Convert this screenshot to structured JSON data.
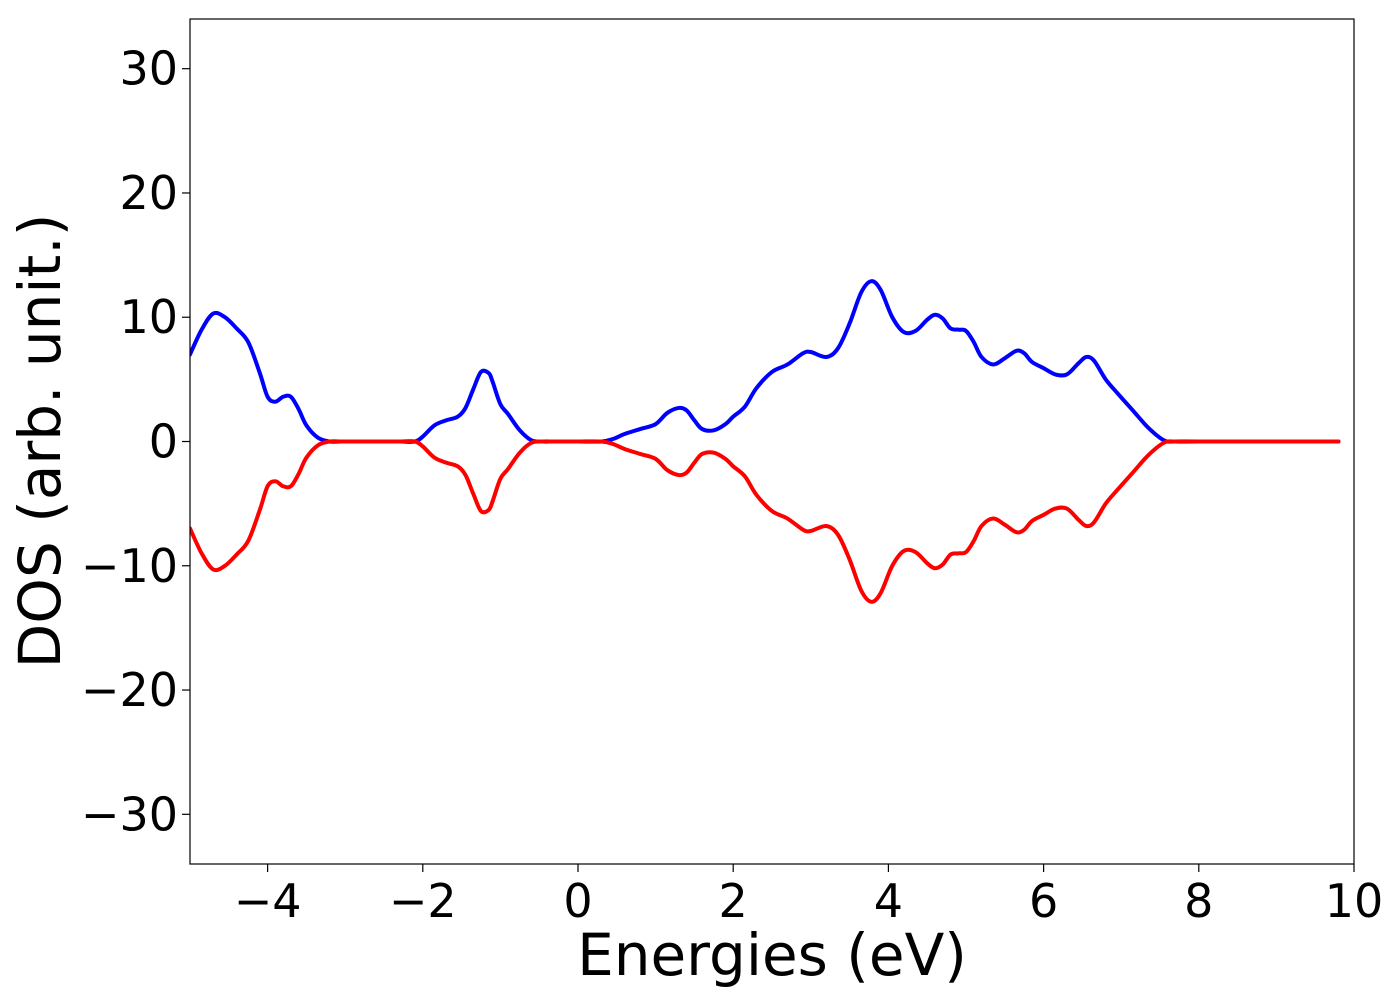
{
  "chart_data": {
    "type": "line",
    "xlabel": "Energies (eV)",
    "ylabel": "DOS (arb. unit.)",
    "xlim": [
      -5,
      10
    ],
    "ylim": [
      -34,
      34
    ],
    "xticks": [
      -4,
      -2,
      0,
      2,
      4,
      6,
      8,
      10
    ],
    "yticks": [
      -30,
      -20,
      -10,
      0,
      10,
      20,
      30
    ],
    "xtick_labels": [
      "−4",
      "−2",
      "0",
      "2",
      "4",
      "6",
      "8",
      "10"
    ],
    "ytick_labels": [
      "−30",
      "−20",
      "−10",
      "0",
      "10",
      "20",
      "30"
    ],
    "grid": false,
    "series": [
      {
        "color": "#0000ff",
        "x": [
          -5.0,
          -4.85,
          -4.7,
          -4.55,
          -4.4,
          -4.25,
          -4.1,
          -4.0,
          -3.9,
          -3.8,
          -3.7,
          -3.6,
          -3.5,
          -3.35,
          -3.2,
          -3.05,
          -2.9,
          -2.6,
          -2.3,
          -2.1,
          -2.0,
          -1.85,
          -1.7,
          -1.55,
          -1.45,
          -1.35,
          -1.25,
          -1.15,
          -1.1,
          -1.0,
          -0.9,
          -0.75,
          -0.6,
          -0.45,
          -0.3,
          0.0,
          0.3,
          0.45,
          0.6,
          0.8,
          1.0,
          1.15,
          1.3,
          1.4,
          1.5,
          1.6,
          1.75,
          1.9,
          2.0,
          2.15,
          2.3,
          2.5,
          2.7,
          2.9,
          3.0,
          3.2,
          3.35,
          3.5,
          3.65,
          3.78,
          3.9,
          4.05,
          4.2,
          4.35,
          4.5,
          4.6,
          4.7,
          4.8,
          4.9,
          5.0,
          5.1,
          5.2,
          5.35,
          5.5,
          5.65,
          5.75,
          5.85,
          6.0,
          6.15,
          6.3,
          6.45,
          6.55,
          6.65,
          6.8,
          6.95,
          7.15,
          7.35,
          7.55,
          7.7,
          8.0,
          9.0,
          9.8
        ],
        "values": [
          7.0,
          9.0,
          10.3,
          10.0,
          9.1,
          8.0,
          5.5,
          3.6,
          3.2,
          3.6,
          3.6,
          2.6,
          1.3,
          0.3,
          0.0,
          0.0,
          0.0,
          0.0,
          0.0,
          0.0,
          0.4,
          1.3,
          1.7,
          2.0,
          2.7,
          4.2,
          5.6,
          5.5,
          4.8,
          3.0,
          2.2,
          0.9,
          0.1,
          0.0,
          0.0,
          0.0,
          0.0,
          0.2,
          0.6,
          1.0,
          1.4,
          2.3,
          2.7,
          2.5,
          1.7,
          1.0,
          0.9,
          1.4,
          2.0,
          2.8,
          4.3,
          5.6,
          6.2,
          7.1,
          7.2,
          6.8,
          7.5,
          9.5,
          12.0,
          12.9,
          12.2,
          10.0,
          8.8,
          8.9,
          9.8,
          10.2,
          9.9,
          9.1,
          9.0,
          8.9,
          8.0,
          6.8,
          6.2,
          6.7,
          7.3,
          7.1,
          6.4,
          5.9,
          5.4,
          5.4,
          6.3,
          6.8,
          6.5,
          5.0,
          3.9,
          2.5,
          1.1,
          0.1,
          0.0,
          0.0,
          0.0,
          0.0
        ]
      },
      {
        "color": "#ff0000",
        "x": [
          -5.0,
          -4.85,
          -4.7,
          -4.55,
          -4.4,
          -4.25,
          -4.1,
          -4.0,
          -3.9,
          -3.8,
          -3.7,
          -3.6,
          -3.5,
          -3.35,
          -3.2,
          -3.05,
          -2.9,
          -2.6,
          -2.3,
          -2.1,
          -2.0,
          -1.85,
          -1.7,
          -1.55,
          -1.45,
          -1.35,
          -1.25,
          -1.15,
          -1.1,
          -1.0,
          -0.9,
          -0.75,
          -0.6,
          -0.45,
          -0.3,
          0.0,
          0.3,
          0.45,
          0.6,
          0.8,
          1.0,
          1.15,
          1.3,
          1.4,
          1.5,
          1.6,
          1.75,
          1.9,
          2.0,
          2.15,
          2.3,
          2.5,
          2.7,
          2.9,
          3.0,
          3.2,
          3.35,
          3.5,
          3.65,
          3.78,
          3.9,
          4.05,
          4.2,
          4.35,
          4.5,
          4.6,
          4.7,
          4.8,
          4.9,
          5.0,
          5.1,
          5.2,
          5.35,
          5.5,
          5.65,
          5.75,
          5.85,
          6.0,
          6.15,
          6.3,
          6.45,
          6.55,
          6.65,
          6.8,
          6.95,
          7.15,
          7.35,
          7.55,
          7.7,
          8.0,
          9.0,
          9.8
        ],
        "values": [
          -7.0,
          -9.0,
          -10.3,
          -10.0,
          -9.1,
          -8.0,
          -5.5,
          -3.6,
          -3.2,
          -3.6,
          -3.6,
          -2.6,
          -1.3,
          -0.3,
          0.0,
          0.0,
          0.0,
          0.0,
          0.0,
          0.0,
          -0.4,
          -1.3,
          -1.7,
          -2.0,
          -2.7,
          -4.2,
          -5.6,
          -5.5,
          -4.8,
          -3.0,
          -2.2,
          -0.9,
          -0.1,
          0.0,
          0.0,
          0.0,
          0.0,
          -0.2,
          -0.6,
          -1.0,
          -1.4,
          -2.3,
          -2.7,
          -2.5,
          -1.7,
          -1.0,
          -0.9,
          -1.4,
          -2.0,
          -2.8,
          -4.3,
          -5.6,
          -6.2,
          -7.1,
          -7.2,
          -6.8,
          -7.5,
          -9.5,
          -12.0,
          -12.9,
          -12.2,
          -10.0,
          -8.8,
          -8.9,
          -9.8,
          -10.2,
          -9.9,
          -9.1,
          -9.0,
          -8.9,
          -8.0,
          -6.8,
          -6.2,
          -6.7,
          -7.3,
          -7.1,
          -6.4,
          -5.9,
          -5.4,
          -5.4,
          -6.3,
          -6.8,
          -6.5,
          -5.0,
          -3.9,
          -2.5,
          -1.1,
          -0.1,
          0.0,
          0.0,
          0.0,
          0.0
        ]
      }
    ]
  }
}
